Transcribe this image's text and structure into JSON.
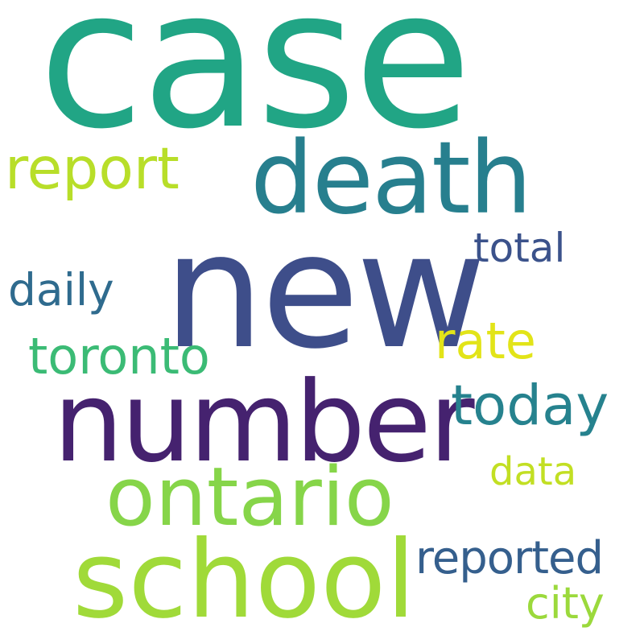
{
  "words": [
    {
      "text": "case",
      "color": "#21A585"
    },
    {
      "text": "new",
      "color": "#3E4E8A"
    },
    {
      "text": "number",
      "color": "#45226F"
    },
    {
      "text": "death",
      "color": "#277F8E"
    },
    {
      "text": "school",
      "color": "#A0DA39"
    },
    {
      "text": "ontario",
      "color": "#86D549"
    },
    {
      "text": "report",
      "color": "#B8DE29"
    },
    {
      "text": "today",
      "color": "#26828E"
    },
    {
      "text": "toronto",
      "color": "#3BBB75"
    },
    {
      "text": "rate",
      "color": "#E2E418"
    },
    {
      "text": "reported",
      "color": "#355F8D"
    },
    {
      "text": "daily",
      "color": "#2F6B8E"
    },
    {
      "text": "city",
      "color": "#9BD93C"
    },
    {
      "text": "total",
      "color": "#3B528B"
    },
    {
      "text": "data",
      "color": "#C2DF23"
    }
  ]
}
